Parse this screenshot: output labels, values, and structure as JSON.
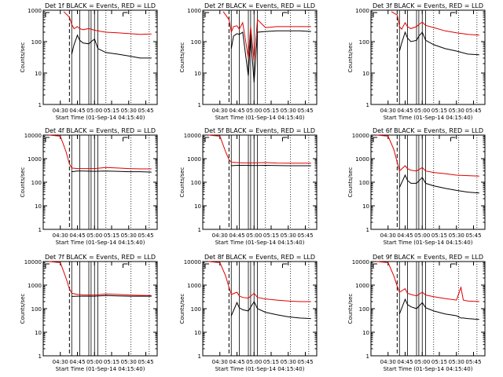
{
  "figure": {
    "background": "#ffffff",
    "events_color": "#000000",
    "lld_color": "#e00000",
    "marker_color": "#000000"
  },
  "panel_common": {
    "xlabel": "Start Time (01-Sep-14 04:15:40)",
    "ylabel": "Counts/sec",
    "xtick_labels": [
      "04:30",
      "04:45",
      "05:00",
      "05:15",
      "05:30",
      "05:45"
    ],
    "ytick_labels": [
      "1",
      "10",
      "100",
      "1000"
    ],
    "ytick_labels_extended": [
      "1",
      "10",
      "100",
      "1000",
      "10000"
    ],
    "yscale": "log"
  },
  "chart_data": [
    {
      "type": "line",
      "title": "Det 1f BLACK = Events, RED = LLD",
      "xlabel": "Start Time (01-Sep-14 04:15:40)",
      "ylabel": "Counts/sec",
      "ylim": [
        1,
        1000
      ],
      "yscale": "log",
      "xlim": [
        "04:15",
        "05:55"
      ],
      "x": [
        "04:33",
        "04:38",
        "04:40",
        "04:42",
        "04:45",
        "04:47",
        "04:50",
        "04:55",
        "04:57",
        "05:00",
        "05:03",
        "05:10",
        "05:20",
        "05:30",
        "05:40",
        "05:50"
      ],
      "series": [
        {
          "name": "RED = LLD",
          "color": "#e00000",
          "values": [
            900,
            600,
            350,
            260,
            300,
            260,
            240,
            260,
            250,
            230,
            220,
            200,
            190,
            180,
            170,
            175
          ]
        },
        {
          "name": "BLACK = Events",
          "color": "#000000",
          "values": [
            null,
            null,
            40,
            80,
            160,
            110,
            90,
            85,
            100,
            120,
            60,
            45,
            40,
            35,
            30,
            30
          ]
        }
      ]
    },
    {
      "type": "line",
      "title": "Det 2f BLACK = Events, RED = LLD",
      "xlabel": "Start Time (01-Sep-14 04:15:40)",
      "ylabel": "Counts/sec",
      "ylim": [
        1,
        1000
      ],
      "yscale": "log",
      "xlim": [
        "04:15",
        "05:55"
      ],
      "x": [
        "04:33",
        "04:38",
        "04:40",
        "04:42",
        "04:45",
        "04:47",
        "04:50",
        "04:55",
        "04:57",
        "05:00",
        "05:03",
        "05:10",
        "05:20",
        "05:30",
        "05:40",
        "05:50"
      ],
      "series": [
        {
          "name": "RED = LLD",
          "color": "#e00000",
          "values": [
            900,
            500,
            200,
            300,
            320,
            250,
            400,
            30,
            300,
            25,
            500,
            280,
            300,
            300,
            300,
            300
          ]
        },
        {
          "name": "BLACK = Events",
          "color": "#000000",
          "values": [
            null,
            null,
            60,
            150,
            180,
            170,
            200,
            8,
            160,
            5,
            200,
            210,
            220,
            220,
            220,
            210
          ]
        }
      ]
    },
    {
      "type": "line",
      "title": "Det 3f BLACK = Events, RED = LLD",
      "xlabel": "Start Time (01-Sep-14 04:15:40)",
      "ylabel": "Counts/sec",
      "ylim": [
        1,
        1000
      ],
      "yscale": "log",
      "xlim": [
        "04:15",
        "05:55"
      ],
      "x": [
        "04:33",
        "04:38",
        "04:40",
        "04:42",
        "04:45",
        "04:47",
        "04:50",
        "04:55",
        "04:57",
        "05:00",
        "05:03",
        "05:10",
        "05:20",
        "05:30",
        "05:40",
        "05:50"
      ],
      "series": [
        {
          "name": "RED = LLD",
          "color": "#e00000",
          "values": [
            900,
            700,
            300,
            250,
            400,
            300,
            260,
            300,
            350,
            420,
            330,
            280,
            220,
            190,
            170,
            160
          ]
        },
        {
          "name": "BLACK = Events",
          "color": "#000000",
          "values": [
            null,
            null,
            50,
            90,
            200,
            130,
            100,
            110,
            150,
            200,
            110,
            80,
            60,
            50,
            40,
            38
          ]
        }
      ]
    },
    {
      "type": "line",
      "title": "Det 4f BLACK = Events, RED = LLD",
      "xlabel": "Start Time (01-Sep-14 04:15:40)",
      "ylabel": "Counts/sec",
      "ylim": [
        1,
        10000
      ],
      "yscale": "log",
      "xlim": [
        "04:15",
        "05:55"
      ],
      "x": [
        "04:20",
        "04:30",
        "04:35",
        "04:38",
        "04:40",
        "04:45",
        "04:50",
        "05:00",
        "05:10",
        "05:20",
        "05:30",
        "05:40",
        "05:50"
      ],
      "series": [
        {
          "name": "RED = LLD",
          "color": "#e00000",
          "values": [
            10000,
            9000,
            2000,
            600,
            400,
            380,
            380,
            380,
            420,
            400,
            380,
            370,
            370
          ]
        },
        {
          "name": "BLACK = Events",
          "color": "#000000",
          "values": [
            null,
            null,
            null,
            null,
            280,
            300,
            300,
            290,
            300,
            290,
            280,
            280,
            270
          ]
        }
      ]
    },
    {
      "type": "line",
      "title": "Det 5f BLACK = Events, RED = LLD",
      "xlabel": "Start Time (01-Sep-14 04:15:40)",
      "ylabel": "Counts/sec",
      "ylim": [
        1,
        10000
      ],
      "yscale": "log",
      "xlim": [
        "04:15",
        "05:55"
      ],
      "x": [
        "04:20",
        "04:30",
        "04:35",
        "04:38",
        "04:40",
        "04:45",
        "04:50",
        "05:00",
        "05:10",
        "05:20",
        "05:30",
        "05:40",
        "05:50"
      ],
      "series": [
        {
          "name": "RED = LLD",
          "color": "#e00000",
          "values": [
            10000,
            9000,
            2000,
            900,
            700,
            680,
            660,
            660,
            680,
            650,
            640,
            640,
            640
          ]
        },
        {
          "name": "BLACK = Events",
          "color": "#000000",
          "values": [
            null,
            null,
            null,
            null,
            500,
            520,
            520,
            510,
            520,
            510,
            500,
            500,
            500
          ]
        }
      ]
    },
    {
      "type": "line",
      "title": "Det 6f BLACK = Events, RED = LLD",
      "xlabel": "Start Time (01-Sep-14 04:15:40)",
      "ylabel": "Counts/sec",
      "ylim": [
        1,
        10000
      ],
      "yscale": "log",
      "xlim": [
        "04:15",
        "05:55"
      ],
      "x": [
        "04:20",
        "04:30",
        "04:35",
        "04:38",
        "04:40",
        "04:45",
        "04:47",
        "04:50",
        "04:55",
        "05:00",
        "05:03",
        "05:10",
        "05:20",
        "05:30",
        "05:40",
        "05:50"
      ],
      "series": [
        {
          "name": "RED = LLD",
          "color": "#e00000",
          "values": [
            10000,
            9000,
            2500,
            700,
            300,
            500,
            380,
            320,
            300,
            420,
            300,
            260,
            230,
            200,
            190,
            180
          ]
        },
        {
          "name": "BLACK = Events",
          "color": "#000000",
          "values": [
            null,
            null,
            null,
            null,
            60,
            200,
            120,
            90,
            90,
            160,
            90,
            70,
            55,
            45,
            38,
            35
          ]
        }
      ]
    },
    {
      "type": "line",
      "title": "Det 7f BLACK = Events, RED = LLD",
      "xlabel": "Start Time (01-Sep-14 04:15:40)",
      "ylabel": "Counts/sec",
      "ylim": [
        1,
        10000
      ],
      "yscale": "log",
      "xlim": [
        "04:15",
        "05:55"
      ],
      "x": [
        "04:20",
        "04:30",
        "04:35",
        "04:38",
        "04:40",
        "04:45",
        "04:50",
        "05:00",
        "05:10",
        "05:20",
        "05:30",
        "05:40",
        "05:50"
      ],
      "series": [
        {
          "name": "RED = LLD",
          "color": "#e00000",
          "values": [
            10000,
            9000,
            2000,
            700,
            450,
            400,
            380,
            380,
            420,
            400,
            380,
            370,
            360
          ]
        },
        {
          "name": "BLACK = Events",
          "color": "#000000",
          "values": [
            null,
            null,
            null,
            null,
            330,
            340,
            340,
            340,
            360,
            350,
            340,
            340,
            340
          ]
        }
      ]
    },
    {
      "type": "line",
      "title": "Det 8f BLACK = Events, RED = LLD",
      "xlabel": "Start Time (01-Sep-14 04:15:40)",
      "ylabel": "Counts/sec",
      "ylim": [
        1,
        10000
      ],
      "yscale": "log",
      "xlim": [
        "04:15",
        "05:55"
      ],
      "x": [
        "04:20",
        "04:30",
        "04:35",
        "04:38",
        "04:40",
        "04:45",
        "04:47",
        "04:50",
        "04:55",
        "05:00",
        "05:03",
        "05:10",
        "05:20",
        "05:30",
        "05:40",
        "05:50"
      ],
      "series": [
        {
          "name": "RED = LLD",
          "color": "#e00000",
          "values": [
            10000,
            9000,
            2500,
            800,
            400,
            500,
            350,
            300,
            280,
            450,
            300,
            260,
            230,
            210,
            200,
            200
          ]
        },
        {
          "name": "BLACK = Events",
          "color": "#000000",
          "values": [
            null,
            null,
            null,
            null,
            50,
            180,
            110,
            90,
            80,
            200,
            100,
            70,
            55,
            45,
            40,
            38
          ]
        }
      ]
    },
    {
      "type": "line",
      "title": "Det 9f BLACK = Events, RED = LLD",
      "xlabel": "Start Time (01-Sep-14 04:15:40)",
      "ylabel": "Counts/sec",
      "ylim": [
        1,
        10000
      ],
      "yscale": "log",
      "xlim": [
        "04:15",
        "05:55"
      ],
      "x": [
        "04:20",
        "04:30",
        "04:35",
        "04:38",
        "04:40",
        "04:45",
        "04:47",
        "04:50",
        "04:55",
        "05:00",
        "05:03",
        "05:10",
        "05:20",
        "05:30",
        "05:34",
        "05:36",
        "05:40",
        "05:50"
      ],
      "series": [
        {
          "name": "RED = LLD",
          "color": "#e00000",
          "values": [
            10000,
            9000,
            2500,
            900,
            500,
            700,
            450,
            400,
            350,
            500,
            380,
            320,
            270,
            230,
            800,
            230,
            210,
            200
          ]
        },
        {
          "name": "BLACK = Events",
          "color": "#000000",
          "values": [
            null,
            null,
            null,
            null,
            60,
            250,
            150,
            120,
            100,
            180,
            110,
            80,
            60,
            50,
            40,
            40,
            38,
            35
          ]
        }
      ]
    }
  ]
}
